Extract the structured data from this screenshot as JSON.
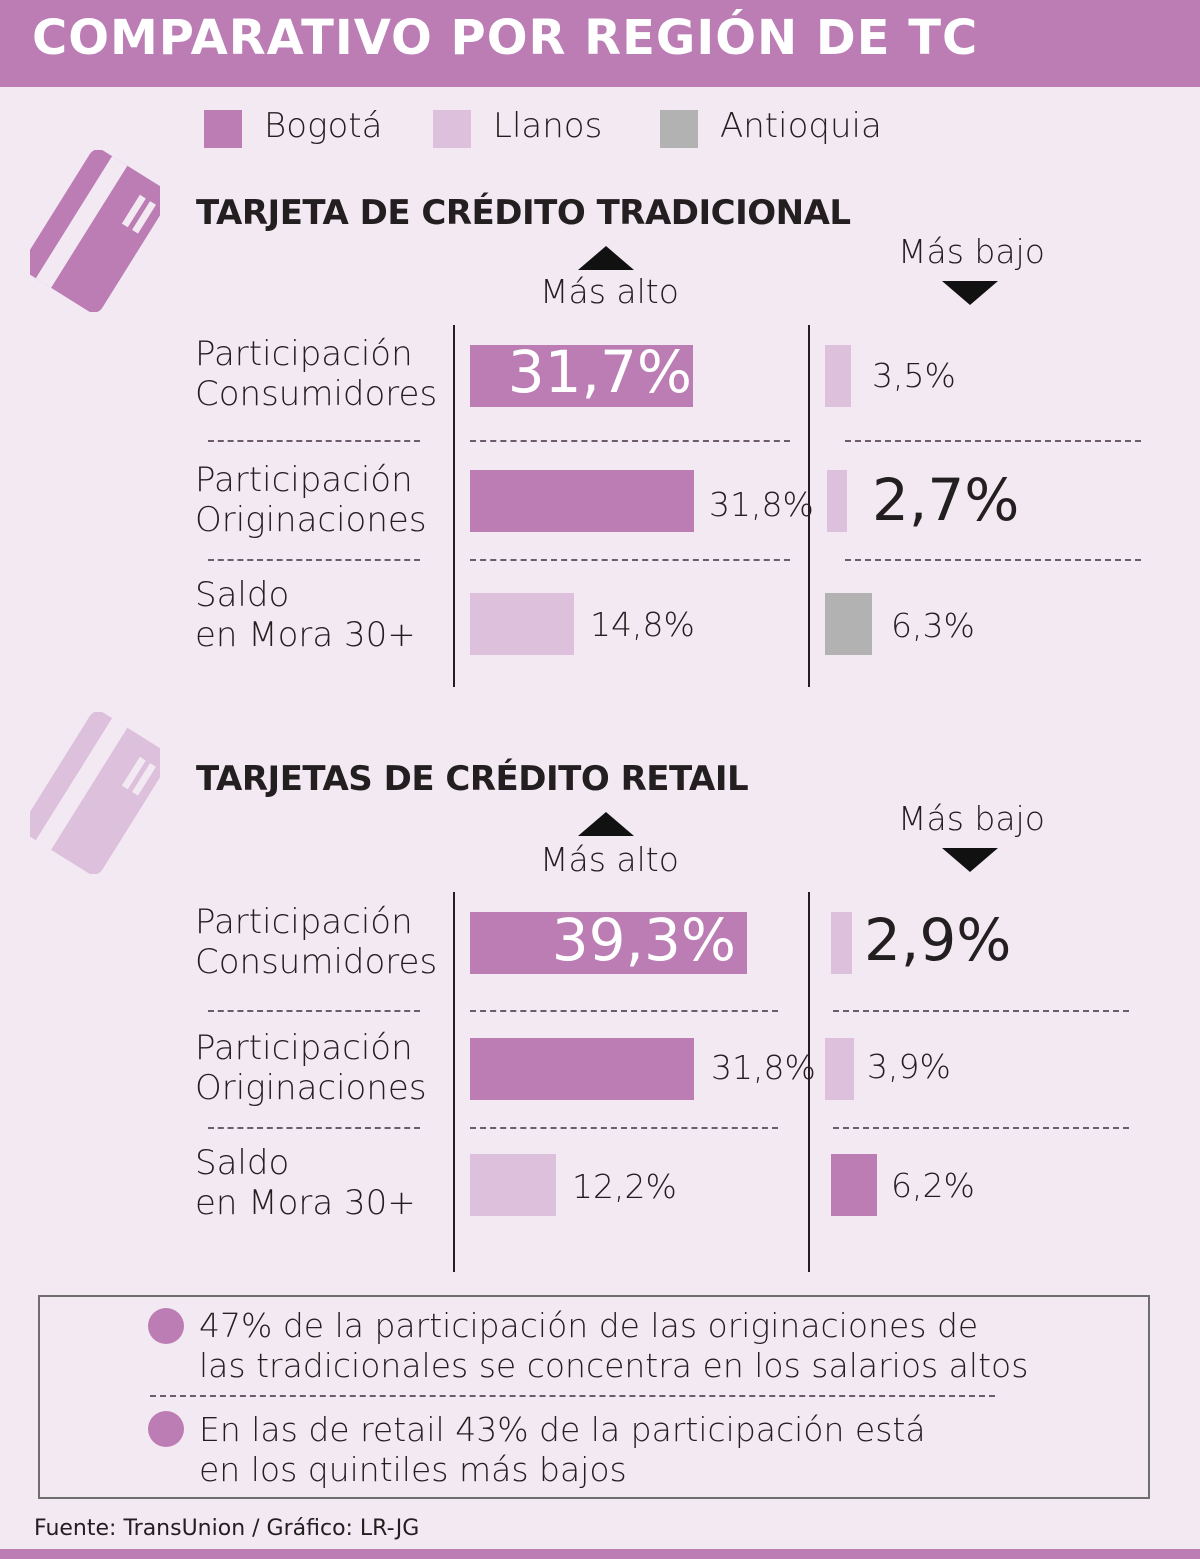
{
  "title": "COMPARATIVO POR REGIÓN DE TC",
  "colors": {
    "bogota": "#bb7db4",
    "llanos": "#dcc0dc",
    "antioquia": "#b2b2b2",
    "band": "#bb7db4",
    "background": "#f3e9f3"
  },
  "legend": [
    {
      "name": "Bogotá",
      "color": "#bb7db4"
    },
    {
      "name": "Llanos",
      "color": "#dcc0dc"
    },
    {
      "name": "Antioquia",
      "color": "#b2b2b2"
    }
  ],
  "labels": {
    "high": "Más alto",
    "low": "Más bajo"
  },
  "row_labels": [
    {
      "line1": "Participación",
      "line2": "Consumidores"
    },
    {
      "line1": "Participación",
      "line2": "Originaciones"
    },
    {
      "line1": "Saldo",
      "line2": "en Mora 30+"
    }
  ],
  "chart_data": [
    {
      "type": "bar",
      "title": "TARJETA DE CRÉDITO TRADICIONAL",
      "categories": [
        "Participación Consumidores",
        "Participación Originaciones",
        "Saldo en Mora 30+"
      ],
      "series": [
        {
          "name": "Más alto",
          "values": [
            31.7,
            31.8,
            14.8
          ],
          "labels": [
            "31,7%",
            "31,8%",
            "14,8%"
          ],
          "regions": [
            "Bogotá",
            "Bogotá",
            "Llanos"
          ]
        },
        {
          "name": "Más bajo",
          "values": [
            3.5,
            2.7,
            6.3
          ],
          "labels": [
            "3,5%",
            "2,7%",
            "6,3%"
          ],
          "regions": [
            "Llanos",
            "Llanos",
            "Antioquia"
          ]
        }
      ]
    },
    {
      "type": "bar",
      "title": "TARJETAS DE CRÉDITO RETAIL",
      "categories": [
        "Participación Consumidores",
        "Participación Originaciones",
        "Saldo en Mora 30+"
      ],
      "series": [
        {
          "name": "Más alto",
          "values": [
            39.3,
            31.8,
            12.2
          ],
          "labels": [
            "39,3%",
            "31,8%",
            "12,2%"
          ],
          "regions": [
            "Bogotá",
            "Bogotá",
            "Llanos"
          ]
        },
        {
          "name": "Más bajo",
          "values": [
            2.9,
            3.9,
            6.2
          ],
          "labels": [
            "2,9%",
            "3,9%",
            "6,2%"
          ],
          "regions": [
            "Llanos",
            "Llanos",
            "Bogotá"
          ]
        }
      ]
    }
  ],
  "notes": [
    {
      "line1": "47% de la participación de las originaciones de",
      "line2": "las tradicionales se concentra en los salarios altos"
    },
    {
      "line1": "En las de retail 43% de la participación está",
      "line2": "en los quintiles más bajos"
    }
  ],
  "source": "Fuente: TransUnion  / Gráfico: LR-JG"
}
